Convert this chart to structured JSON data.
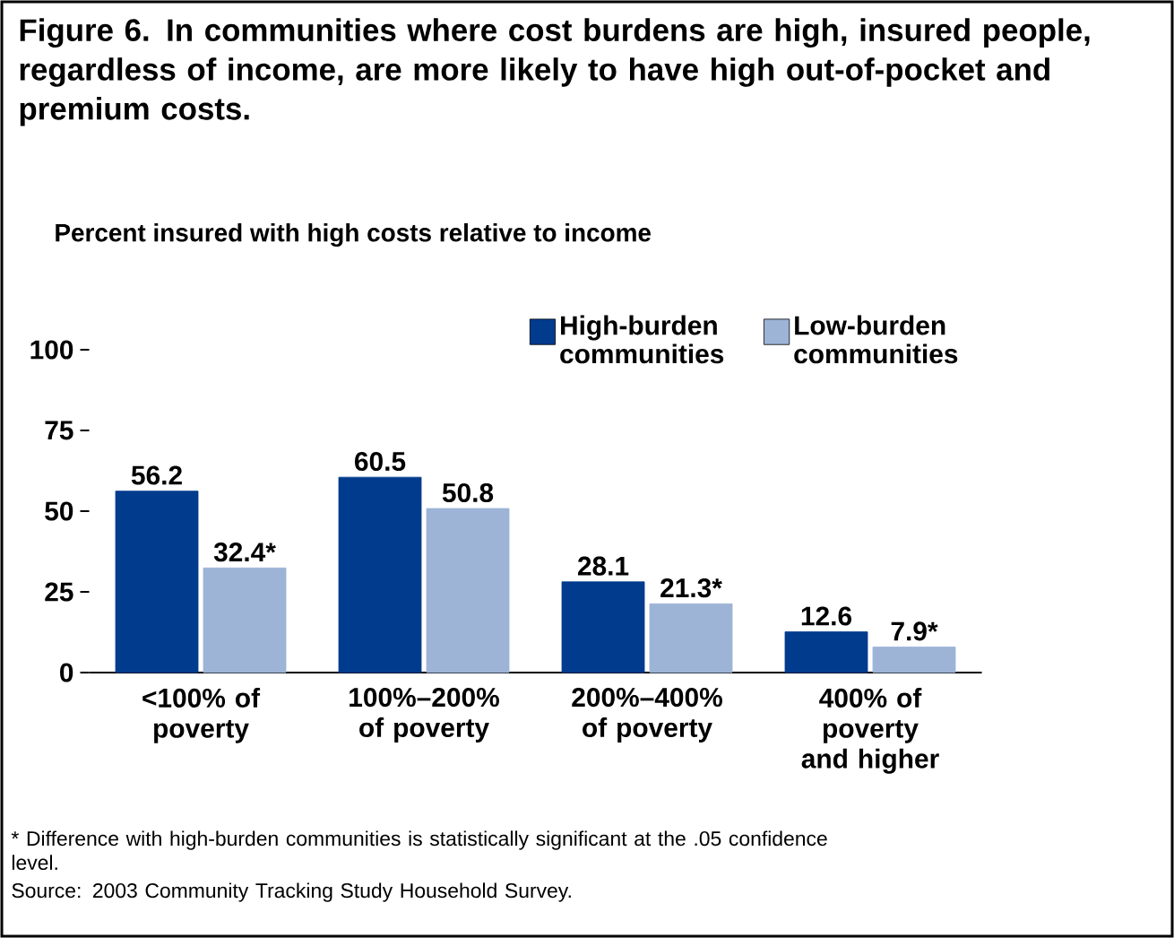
{
  "chart_data": {
    "type": "bar",
    "title": "Figure 6. In communities where cost burdens are high, insured people, regardless of income, are more likely to have high out-of-pocket and premium costs.",
    "subtitle": "Percent insured with high costs relative to income",
    "categories": [
      "<100% of poverty",
      "100%–200% of poverty",
      "200%–400% of poverty",
      "400% of poverty and higher"
    ],
    "series": [
      {
        "name": "High-burden communities",
        "color": "#003b8e",
        "values": [
          56.2,
          60.5,
          28.1,
          12.6
        ],
        "value_labels": [
          "56.2",
          "60.5",
          "28.1",
          "12.6"
        ]
      },
      {
        "name": "Low-burden communities",
        "color": "#9db4d6",
        "values": [
          32.4,
          50.8,
          21.3,
          7.9
        ],
        "value_labels": [
          "32.4*",
          "50.8",
          "21.3*",
          "7.9*"
        ]
      }
    ],
    "ylim": [
      0,
      100
    ],
    "yticks": [
      0,
      25,
      50,
      75,
      100
    ],
    "grid": false,
    "legend": "top right",
    "annotations": [
      "* Difference with high-burden communities is statistically significant at the .05 confidence level.",
      "Source: 2003 Community Tracking Study Household Survey."
    ]
  }
}
